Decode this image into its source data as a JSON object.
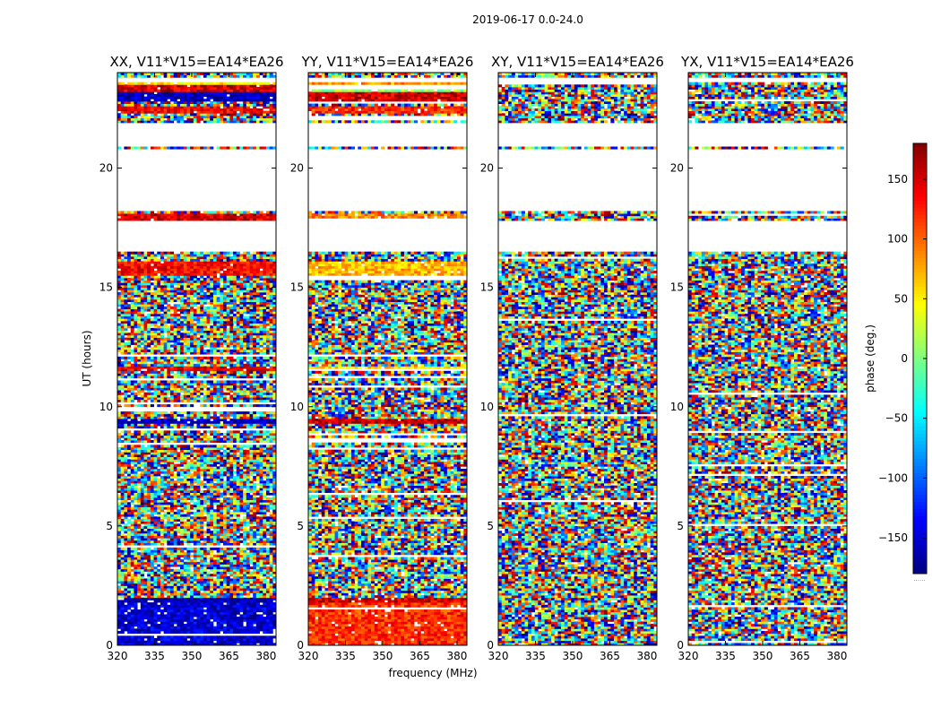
{
  "figure": {
    "suptitle": "2019-06-17 0.0-24.0",
    "xlabel": "frequency (MHz)",
    "ylabel": "UT (hours)",
    "colorbar_label": "phase (deg.)",
    "colorbar_note": "......"
  },
  "chart_data": [
    {
      "type": "heatmap",
      "id": "xx",
      "title": "XX, V11*V15=EA14*EA26",
      "xlabel": "frequency (MHz)",
      "ylabel": "UT (hours)",
      "xlim": [
        320,
        384
      ],
      "ylim": [
        0,
        24
      ],
      "xticks": [
        "320",
        "335",
        "350",
        "365",
        "380"
      ],
      "yticks": [
        "0",
        "5",
        "10",
        "15",
        "20"
      ],
      "value_label": "phase (deg.)",
      "value_range": [
        -180,
        180
      ],
      "coherent_bands": [
        {
          "t0": 0.0,
          "t1": 1.8,
          "phase": -150
        },
        {
          "t0": 1.8,
          "t1": 2.0,
          "phase": -165
        },
        {
          "t0": 9.3,
          "t1": 9.5,
          "phase": -160
        },
        {
          "t0": 11.5,
          "t1": 11.7,
          "phase": 140
        },
        {
          "t0": 15.5,
          "t1": 16.1,
          "phase": 135
        },
        {
          "t0": 17.8,
          "t1": 18.1,
          "phase": 150
        },
        {
          "t0": 22.3,
          "t1": 22.6,
          "phase": 140
        },
        {
          "t0": 22.8,
          "t1": 23.2,
          "phase": -160
        },
        {
          "t0": 23.2,
          "t1": 23.5,
          "phase": 150
        },
        {
          "t0": 23.5,
          "t1": 23.6,
          "phase": 50
        }
      ]
    },
    {
      "type": "heatmap",
      "id": "yy",
      "title": "YY, V11*V15=EA14*EA26",
      "xlabel": "frequency (MHz)",
      "ylabel": "UT (hours)",
      "xlim": [
        320,
        384
      ],
      "ylim": [
        0,
        24
      ],
      "xticks": [
        "320",
        "335",
        "350",
        "365",
        "380"
      ],
      "yticks": [
        "0",
        "5",
        "10",
        "15",
        "20"
      ],
      "value_label": "phase (deg.)",
      "value_range": [
        -180,
        180
      ],
      "coherent_bands": [
        {
          "t0": 0.0,
          "t1": 1.8,
          "phase": 120
        },
        {
          "t0": 1.8,
          "t1": 2.0,
          "phase": 150
        },
        {
          "t0": 9.3,
          "t1": 9.5,
          "phase": 155
        },
        {
          "t0": 11.5,
          "t1": 11.7,
          "phase": 60
        },
        {
          "t0": 15.5,
          "t1": 16.1,
          "phase": 70
        },
        {
          "t0": 17.8,
          "t1": 18.1,
          "phase": 90
        },
        {
          "t0": 22.3,
          "t1": 22.6,
          "phase": 120
        },
        {
          "t0": 22.8,
          "t1": 23.2,
          "phase": 150
        },
        {
          "t0": 23.2,
          "t1": 23.5,
          "phase": 10
        },
        {
          "t0": 23.5,
          "t1": 23.6,
          "phase": 80
        }
      ]
    },
    {
      "type": "heatmap",
      "id": "xy",
      "title": "XY, V11*V15=EA14*EA26",
      "xlabel": "frequency (MHz)",
      "ylabel": "UT (hours)",
      "xlim": [
        320,
        384
      ],
      "ylim": [
        0,
        24
      ],
      "xticks": [
        "320",
        "335",
        "350",
        "365",
        "380"
      ],
      "yticks": [
        "0",
        "5",
        "10",
        "15",
        "20"
      ],
      "value_label": "phase (deg.)",
      "value_range": [
        -180,
        180
      ],
      "coherent_bands": []
    },
    {
      "type": "heatmap",
      "id": "yx",
      "title": "YX, V11*V15=EA14*EA26",
      "xlabel": "frequency (MHz)",
      "ylabel": "UT (hours)",
      "xlim": [
        320,
        384
      ],
      "ylim": [
        0,
        24
      ],
      "xticks": [
        "320",
        "335",
        "350",
        "365",
        "380"
      ],
      "yticks": [
        "0",
        "5",
        "10",
        "15",
        "20"
      ],
      "value_label": "phase (deg.)",
      "value_range": [
        -180,
        180
      ],
      "coherent_bands": []
    }
  ],
  "shared_gaps_hours": [
    [
      16.5,
      17.8
    ],
    [
      18.2,
      20.8
    ],
    [
      20.9,
      21.9
    ],
    [
      23.65,
      23.75
    ]
  ],
  "colorbar": {
    "ticks": [
      "150",
      "100",
      "50",
      "0",
      "−50",
      "−100",
      "−150"
    ],
    "tick_values": [
      150,
      100,
      50,
      0,
      -50,
      -100,
      -150
    ],
    "range": [
      -180,
      180
    ],
    "colormap": "jet"
  }
}
